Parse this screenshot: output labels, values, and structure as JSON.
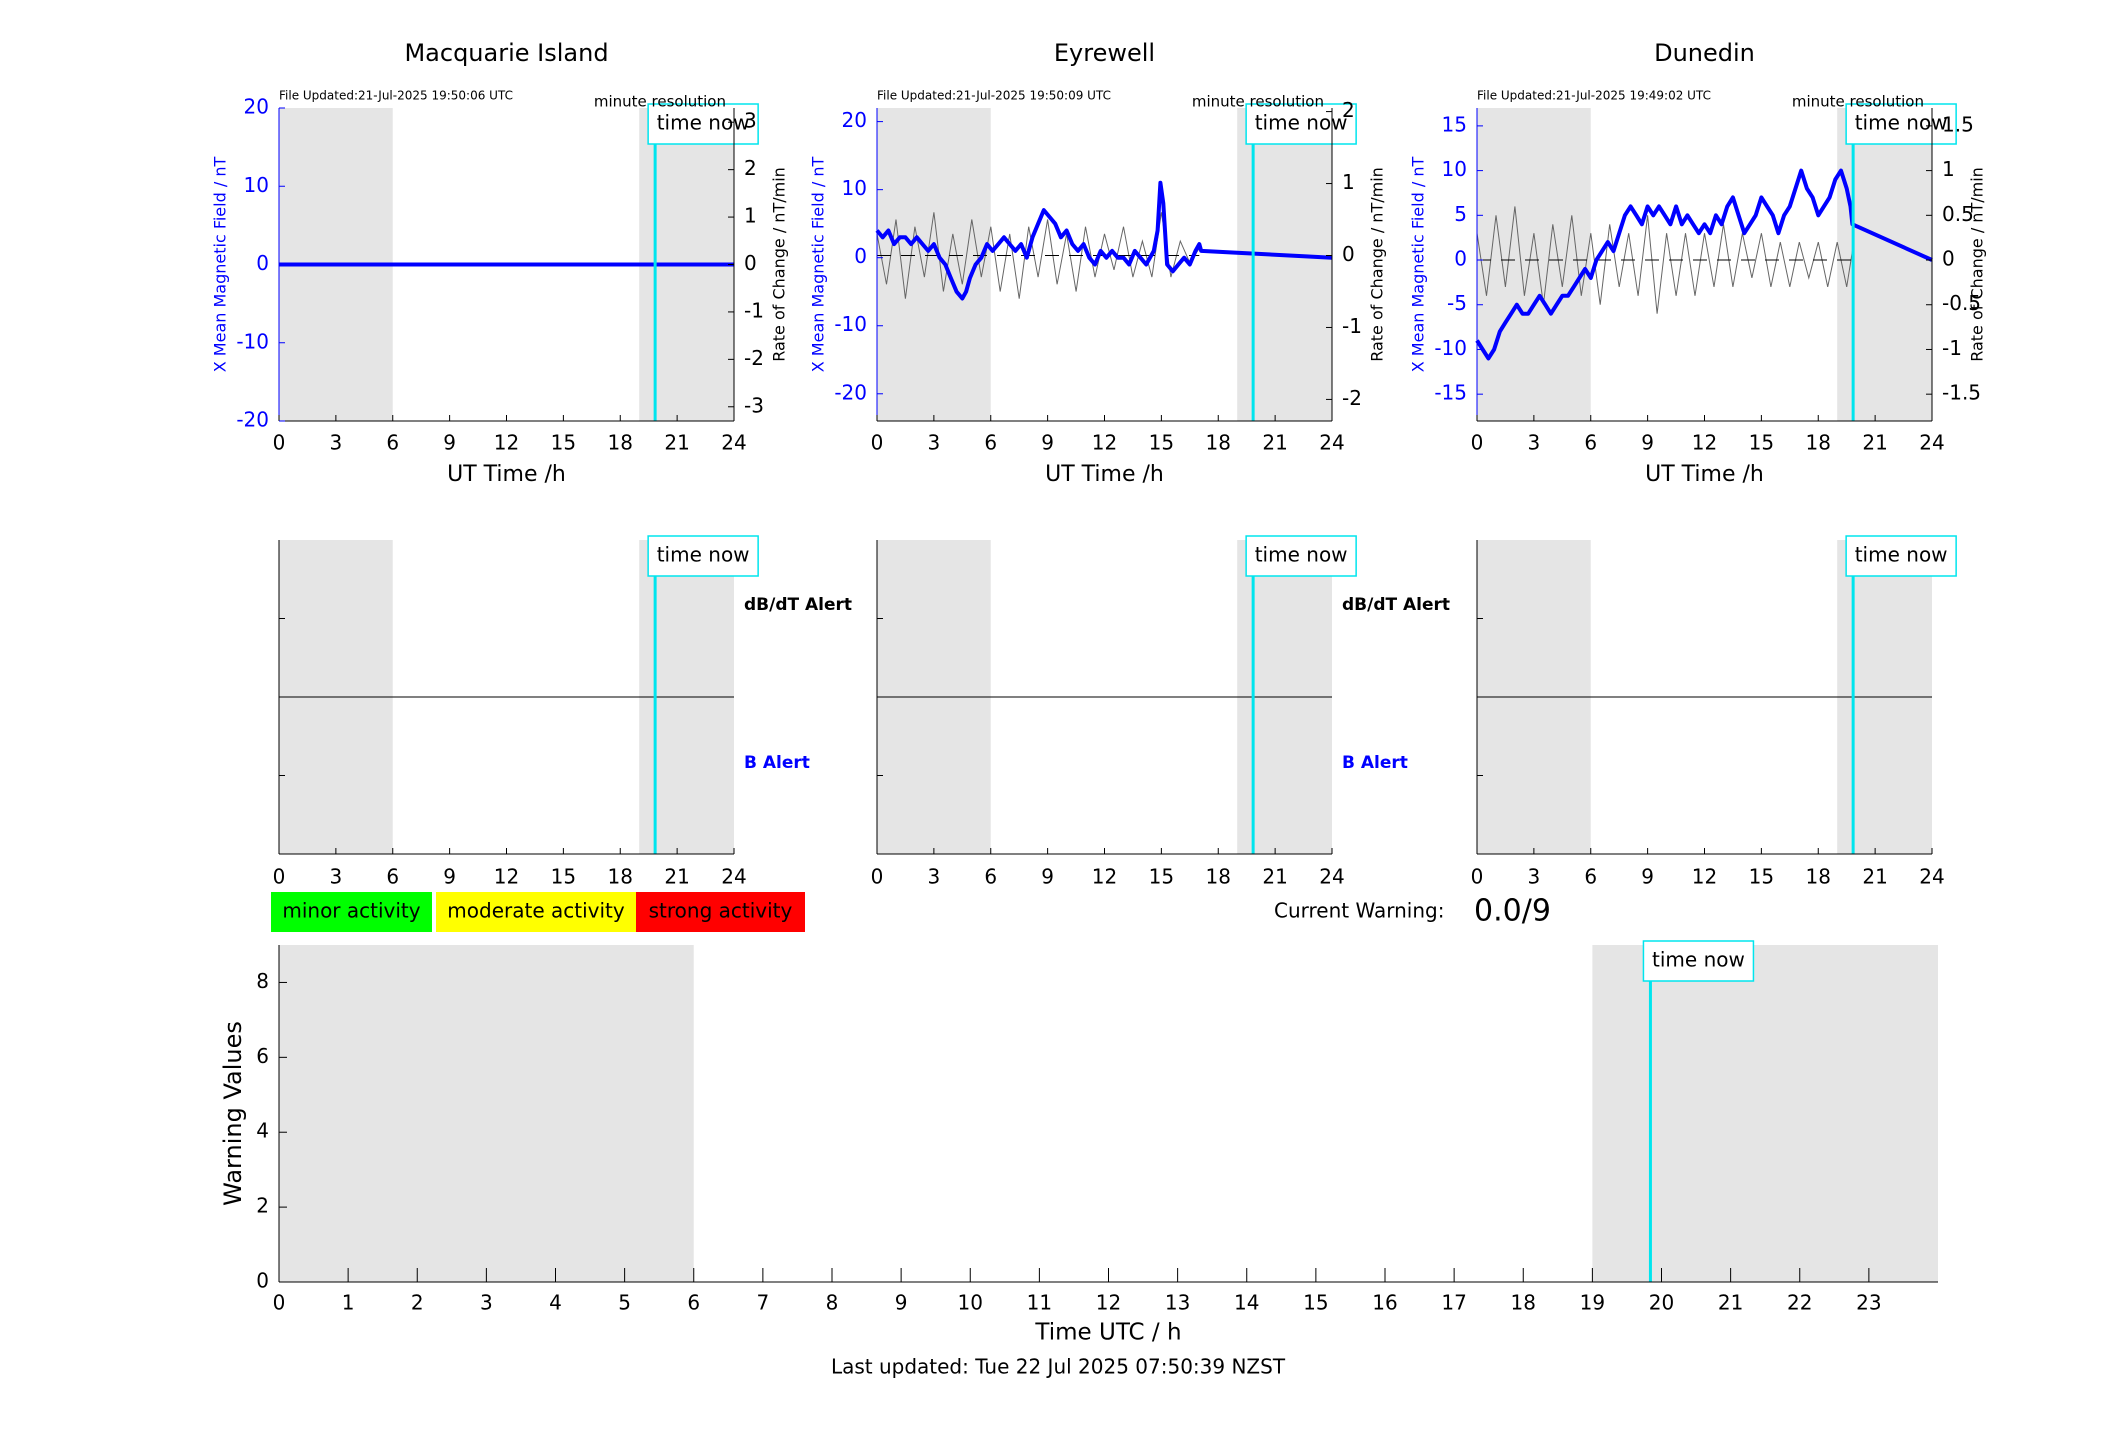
{
  "colors": {
    "field": "#0000ff",
    "rate": "#000000",
    "time_now": "#00e5ee",
    "night_shade": "#e5e5e5",
    "minor": "#00ff00",
    "moderate": "#ffff00",
    "strong": "#ff0000"
  },
  "top_panels": [
    {
      "title": "Macquarie Island",
      "file_updated": "File Updated:21-Jul-2025 19:50:06 UTC",
      "resolution": "minute resolution",
      "time_now_label": "time now",
      "ylabel": "X Mean Magnetic Field / nT",
      "y2label": "Rate of Change / nT/min",
      "xlabel": "UT Time /h",
      "xticks": [
        "0",
        "3",
        "6",
        "9",
        "12",
        "15",
        "18",
        "21",
        "24"
      ],
      "yticks": [
        "20",
        "10",
        "0",
        "-10",
        "-20"
      ],
      "y2ticks": [
        "3",
        "2",
        "1",
        "0",
        "-1",
        "-2",
        "-3"
      ]
    },
    {
      "title": "Eyrewell",
      "file_updated": "File Updated:21-Jul-2025 19:50:09 UTC",
      "resolution": "minute resolution",
      "time_now_label": "time now",
      "ylabel": "X Mean Magnetic Field / nT",
      "y2label": "Rate of Change / nT/min",
      "xlabel": "UT Time /h",
      "xticks": [
        "0",
        "3",
        "6",
        "9",
        "12",
        "15",
        "18",
        "21",
        "24"
      ],
      "yticks": [
        "20",
        "10",
        "0",
        "-10",
        "-20"
      ],
      "y2ticks": [
        "2",
        "1",
        "0",
        "-1",
        "-2"
      ]
    },
    {
      "title": "Dunedin",
      "file_updated": "File Updated:21-Jul-2025 19:49:02 UTC",
      "resolution": "minute resolution",
      "time_now_label": "time now",
      "ylabel": "X Mean Magnetic Field / nT",
      "y2label": "Rate of Change / nT/min",
      "xlabel": "UT Time /h",
      "xticks": [
        "0",
        "3",
        "6",
        "9",
        "12",
        "15",
        "18",
        "21",
        "24"
      ],
      "yticks": [
        "15",
        "10",
        "5",
        "0",
        "-5",
        "-10",
        "-15"
      ],
      "y2ticks": [
        "1.5",
        "1",
        "0.5",
        "0",
        "-0.5",
        "-1",
        "-1.5"
      ]
    }
  ],
  "mid_panels": [
    {
      "time_now_label": "time now",
      "dbdt_label": "dB/dT Alert",
      "b_label": "B Alert",
      "xticks": [
        "0",
        "3",
        "6",
        "9",
        "12",
        "15",
        "18",
        "21",
        "24"
      ]
    },
    {
      "time_now_label": "time now",
      "dbdt_label": "dB/dT Alert",
      "b_label": "B Alert",
      "xticks": [
        "0",
        "3",
        "6",
        "9",
        "12",
        "15",
        "18",
        "21",
        "24"
      ]
    },
    {
      "time_now_label": "time now",
      "xticks": [
        "0",
        "3",
        "6",
        "9",
        "12",
        "15",
        "18",
        "21",
        "24"
      ]
    }
  ],
  "legend": {
    "minor": "minor activity",
    "moderate": "moderate activity",
    "strong": "strong activity"
  },
  "current_warning": {
    "label": "Current Warning:",
    "value": "0.0/9"
  },
  "bottom_panel": {
    "time_now_label": "time now",
    "ylabel": "Warning Values",
    "xlabel": "Time UTC / h",
    "xticks": [
      "0",
      "1",
      "2",
      "3",
      "4",
      "5",
      "6",
      "7",
      "8",
      "9",
      "10",
      "11",
      "12",
      "13",
      "14",
      "15",
      "16",
      "17",
      "18",
      "19",
      "20",
      "21",
      "22",
      "23"
    ],
    "yticks": [
      "0",
      "2",
      "4",
      "6",
      "8"
    ]
  },
  "footer": "Last updated: Tue 22 Jul 2025 07:50:39 NZST",
  "chart_data": [
    {
      "type": "line",
      "title": "Macquarie Island",
      "xlabel": "UT Time /h",
      "ylabel": "X Mean Magnetic Field / nT",
      "y2label": "Rate of Change / nT/min",
      "xlim": [
        0,
        24
      ],
      "ylim": [
        -20,
        20
      ],
      "y2lim": [
        -3.3,
        3.3
      ],
      "shaded_hours": [
        [
          0,
          6
        ],
        [
          19,
          24
        ]
      ],
      "time_now": 19.84,
      "series": [
        {
          "x": [
            0,
            24
          ],
          "values": [
            0,
            0
          ]
        }
      ]
    },
    {
      "type": "line",
      "title": "Eyrewell",
      "xlabel": "UT Time /h",
      "ylabel": "X Mean Magnetic Field / nT",
      "y2label": "Rate of Change / nT/min",
      "xlim": [
        0,
        24
      ],
      "ylim": [
        -24,
        22
      ],
      "y2lim": [
        -2.3,
        2.05
      ],
      "shaded_hours": [
        [
          0,
          6
        ],
        [
          19,
          24
        ]
      ],
      "time_now": 19.84,
      "series": [
        {
          "x": [
            0,
            0.3,
            0.6,
            0.9,
            1.2,
            1.5,
            1.8,
            2.1,
            2.4,
            2.7,
            3.0,
            3.3,
            3.6,
            3.9,
            4.2,
            4.5,
            4.7,
            4.9,
            5.2,
            5.5,
            5.8,
            6.1,
            6.4,
            6.7,
            7.0,
            7.3,
            7.6,
            7.9,
            8.2,
            8.5,
            8.8,
            9.1,
            9.4,
            9.7,
            10.0,
            10.3,
            10.6,
            10.9,
            11.2,
            11.5,
            11.8,
            12.1,
            12.4,
            12.7,
            13.0,
            13.3,
            13.6,
            13.9,
            14.2,
            14.4,
            14.6,
            14.8,
            14.95,
            15.1,
            15.3,
            15.6,
            15.9,
            16.2,
            16.5,
            16.8,
            17.0,
            17.1,
            24
          ],
          "values": [
            4,
            3,
            4,
            2,
            3,
            3,
            2,
            3,
            2,
            1,
            2,
            0,
            -1,
            -3,
            -5,
            -6,
            -5,
            -3,
            -1,
            0,
            2,
            1,
            2,
            3,
            2,
            1,
            2,
            0,
            3,
            5,
            7,
            6,
            5,
            3,
            4,
            2,
            1,
            2,
            0,
            -1,
            1,
            0,
            1,
            0,
            0,
            -1,
            1,
            0,
            -1,
            0,
            1,
            4,
            11,
            8,
            -1,
            -2,
            -1,
            0,
            -1,
            1,
            2,
            1,
            0
          ]
        },
        {
          "name_hidden": "rate",
          "x": [
            0,
            0.5,
            1,
            1.5,
            2,
            2.5,
            3,
            3.5,
            4,
            4.5,
            5,
            5.5,
            6,
            6.5,
            7,
            7.5,
            8,
            8.5,
            9,
            9.5,
            10,
            10.5,
            11,
            11.5,
            12,
            12.5,
            13,
            13.5,
            14,
            14.5,
            15,
            15.5,
            16,
            16.5,
            17
          ],
          "values": [
            0.3,
            -0.4,
            0.5,
            -0.6,
            0.4,
            -0.3,
            0.6,
            -0.5,
            0.3,
            -0.4,
            0.5,
            -0.3,
            0.4,
            -0.5,
            0.3,
            -0.6,
            0.4,
            -0.3,
            0.5,
            -0.4,
            0.3,
            -0.5,
            0.4,
            -0.3,
            0.3,
            -0.2,
            0.4,
            -0.3,
            0.2,
            -0.3,
            0.6,
            -0.3,
            0.2,
            -0.1,
            0.1
          ]
        }
      ]
    },
    {
      "type": "line",
      "title": "Dunedin",
      "xlabel": "UT Time /h",
      "ylabel": "X Mean Magnetic Field / nT",
      "y2label": "Rate of Change / nT/min",
      "xlim": [
        0,
        24
      ],
      "ylim": [
        -18,
        17
      ],
      "y2lim": [
        -1.8,
        1.7
      ],
      "shaded_hours": [
        [
          0,
          6
        ],
        [
          19,
          24
        ]
      ],
      "time_now": 19.84,
      "series": [
        {
          "x": [
            0,
            0.3,
            0.6,
            0.9,
            1.2,
            1.5,
            1.8,
            2.1,
            2.4,
            2.7,
            3.0,
            3.3,
            3.6,
            3.9,
            4.2,
            4.5,
            4.8,
            5.1,
            5.4,
            5.7,
            6.0,
            6.3,
            6.6,
            6.9,
            7.2,
            7.5,
            7.8,
            8.1,
            8.4,
            8.7,
            9.0,
            9.3,
            9.6,
            9.9,
            10.2,
            10.5,
            10.8,
            11.1,
            11.4,
            11.7,
            12.0,
            12.3,
            12.6,
            12.9,
            13.2,
            13.5,
            13.8,
            14.1,
            14.4,
            14.7,
            15.0,
            15.3,
            15.6,
            15.9,
            16.2,
            16.5,
            16.8,
            17.1,
            17.4,
            17.7,
            18.0,
            18.3,
            18.6,
            18.9,
            19.2,
            19.5,
            19.7,
            19.8,
            24
          ],
          "values": [
            -9,
            -10,
            -11,
            -10,
            -8,
            -7,
            -6,
            -5,
            -6,
            -6,
            -5,
            -4,
            -5,
            -6,
            -5,
            -4,
            -4,
            -3,
            -2,
            -1,
            -2,
            0,
            1,
            2,
            1,
            3,
            5,
            6,
            5,
            4,
            6,
            5,
            6,
            5,
            4,
            6,
            4,
            5,
            4,
            3,
            4,
            3,
            5,
            4,
            6,
            7,
            5,
            3,
            4,
            5,
            7,
            6,
            5,
            3,
            5,
            6,
            8,
            10,
            8,
            7,
            5,
            6,
            7,
            9,
            10,
            8,
            6,
            4,
            0
          ]
        },
        {
          "name_hidden": "rate",
          "x": [
            0,
            0.5,
            1,
            1.5,
            2,
            2.5,
            3,
            3.5,
            4,
            4.5,
            5,
            5.5,
            6,
            6.5,
            7,
            7.5,
            8,
            8.5,
            9,
            9.5,
            10,
            10.5,
            11,
            11.5,
            12,
            12.5,
            13,
            13.5,
            14,
            14.5,
            15,
            15.5,
            16,
            16.5,
            17,
            17.5,
            18,
            18.5,
            19,
            19.5,
            19.8
          ],
          "values": [
            0.3,
            -0.4,
            0.5,
            -0.3,
            0.6,
            -0.4,
            0.3,
            -0.5,
            0.4,
            -0.3,
            0.5,
            -0.4,
            0.3,
            -0.5,
            0.4,
            -0.3,
            0.3,
            -0.4,
            0.5,
            -0.6,
            0.3,
            -0.4,
            0.3,
            -0.4,
            0.3,
            -0.3,
            0.4,
            -0.3,
            0.3,
            -0.2,
            0.3,
            -0.3,
            0.2,
            -0.3,
            0.2,
            -0.2,
            0.2,
            -0.3,
            0.2,
            -0.3,
            0.1
          ]
        }
      ]
    },
    {
      "type": "bar",
      "xlabel": "Time UTC / h",
      "ylabel": "Warning Values",
      "xlim": [
        0,
        24
      ],
      "ylim": [
        0,
        9
      ],
      "shaded_hours": [
        [
          0,
          6
        ],
        [
          19,
          24
        ]
      ],
      "time_now": 19.84,
      "values": []
    }
  ]
}
